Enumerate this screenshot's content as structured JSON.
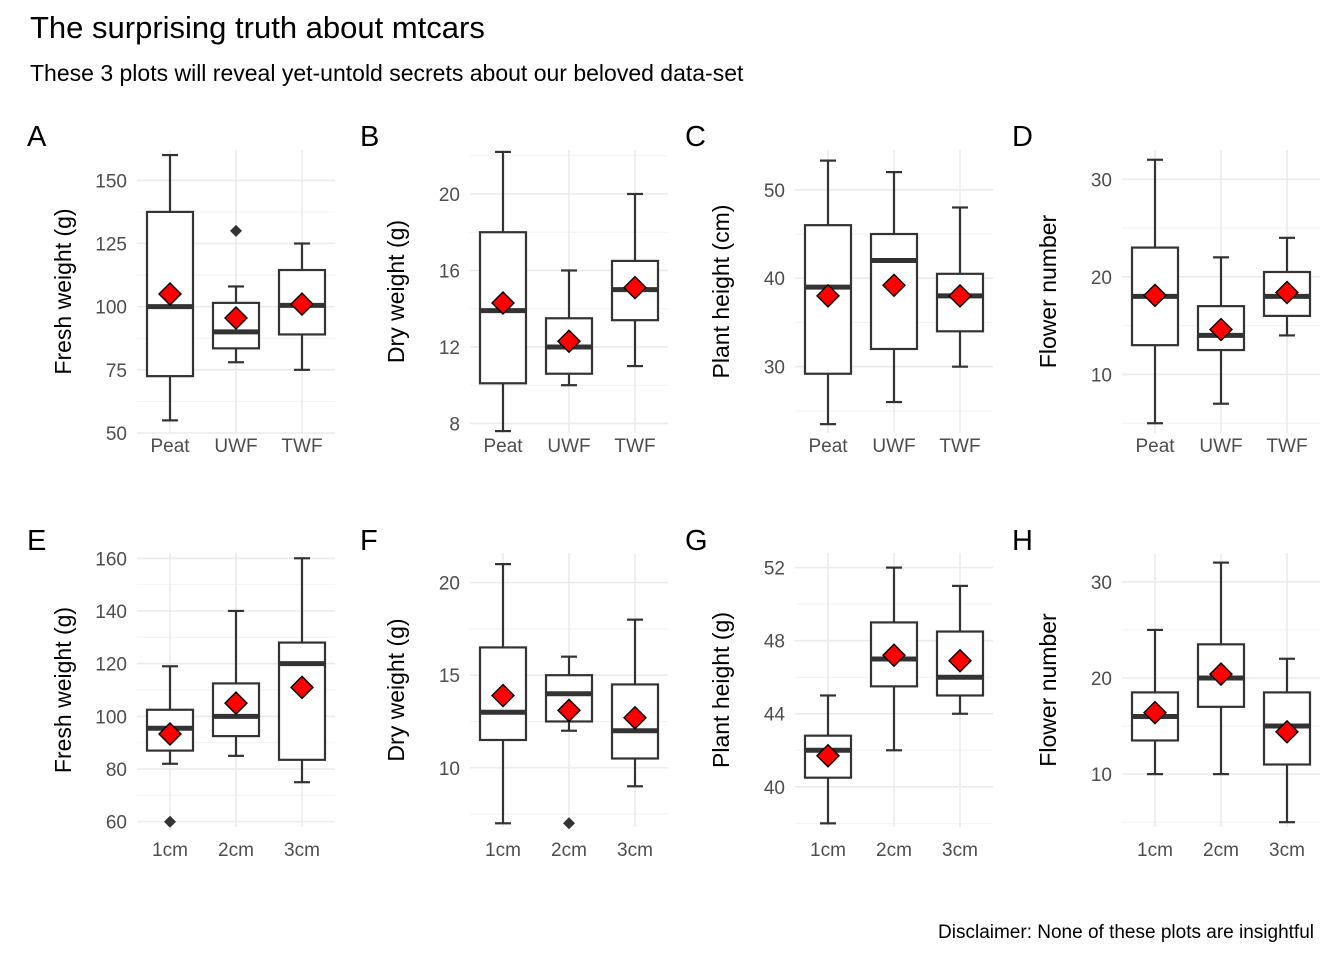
{
  "title": "The surprising truth about mtcars",
  "subtitle": "These 3 plots will reveal yet-untold secrets about our beloved data-set",
  "caption": "Disclaimer: None of these plots are insightful",
  "colors": {
    "mean_marker": "#ff0000",
    "box_line": "#333333",
    "grid": "#ebebeb"
  },
  "chart_data": [
    {
      "type": "boxplot",
      "tag": "A",
      "ylabel": "Fresh weight (g)",
      "categories": [
        "Peat",
        "UWF",
        "TWF"
      ],
      "ylim": [
        50,
        162
      ],
      "yticks": [
        50,
        75,
        100,
        125,
        150
      ],
      "boxes": [
        {
          "min": 55,
          "q1": 72.5,
          "median": 100,
          "q3": 137.5,
          "max": 160,
          "mean": 105,
          "outliers": []
        },
        {
          "min": 78,
          "q1": 83.5,
          "median": 90,
          "q3": 101.5,
          "max": 108,
          "mean": 95.5,
          "outliers": [
            130
          ]
        },
        {
          "min": 75,
          "q1": 89,
          "median": 100.5,
          "q3": 114.5,
          "max": 125,
          "mean": 101,
          "outliers": []
        }
      ]
    },
    {
      "type": "boxplot",
      "tag": "B",
      "ylabel": "Dry weight (g)",
      "categories": [
        "Peat",
        "UWF",
        "TWF"
      ],
      "ylim": [
        7.5,
        22.3
      ],
      "yticks": [
        8,
        12,
        16,
        20
      ],
      "boxes": [
        {
          "min": 7.6,
          "q1": 10.1,
          "median": 13.9,
          "q3": 18,
          "max": 22.2,
          "mean": 14.3,
          "outliers": []
        },
        {
          "min": 10,
          "q1": 10.6,
          "median": 12,
          "q3": 13.5,
          "max": 16,
          "mean": 12.3,
          "outliers": []
        },
        {
          "min": 11,
          "q1": 13.4,
          "median": 15,
          "q3": 16.5,
          "max": 20,
          "mean": 15.1,
          "outliers": []
        }
      ]
    },
    {
      "type": "boxplot",
      "tag": "C",
      "ylabel": "Plant height (cm)",
      "categories": [
        "Peat",
        "UWF",
        "TWF"
      ],
      "ylim": [
        22.5,
        54.5
      ],
      "yticks": [
        30,
        40,
        50
      ],
      "boxes": [
        {
          "min": 23.5,
          "q1": 29.2,
          "median": 39,
          "q3": 46,
          "max": 53.3,
          "mean": 38,
          "outliers": []
        },
        {
          "min": 26,
          "q1": 32,
          "median": 42,
          "q3": 45,
          "max": 52,
          "mean": 39.2,
          "outliers": []
        },
        {
          "min": 30,
          "q1": 34,
          "median": 38,
          "q3": 40.5,
          "max": 48,
          "mean": 38,
          "outliers": []
        }
      ]
    },
    {
      "type": "boxplot",
      "tag": "D",
      "ylabel": "Flower number",
      "categories": [
        "Peat",
        "UWF",
        "TWF"
      ],
      "ylim": [
        4,
        33
      ],
      "yticks": [
        10,
        20,
        30
      ],
      "boxes": [
        {
          "min": 5,
          "q1": 13,
          "median": 18,
          "q3": 23,
          "max": 32,
          "mean": 18.1,
          "outliers": []
        },
        {
          "min": 7,
          "q1": 12.5,
          "median": 14,
          "q3": 17,
          "max": 22,
          "mean": 14.6,
          "outliers": []
        },
        {
          "min": 14,
          "q1": 16,
          "median": 18,
          "q3": 20.5,
          "max": 24,
          "mean": 18.4,
          "outliers": []
        }
      ]
    },
    {
      "type": "boxplot",
      "tag": "E",
      "ylabel": "Fresh weight (g)",
      "categories": [
        "1cm",
        "2cm",
        "3cm"
      ],
      "ylim": [
        58,
        162
      ],
      "yticks": [
        60,
        80,
        100,
        120,
        140,
        160
      ],
      "boxes": [
        {
          "min": 82,
          "q1": 87,
          "median": 95.5,
          "q3": 102.5,
          "max": 119,
          "mean": 93.3,
          "outliers": [
            60
          ]
        },
        {
          "min": 85,
          "q1": 92.5,
          "median": 100,
          "q3": 112.5,
          "max": 140,
          "mean": 105,
          "outliers": []
        },
        {
          "min": 75,
          "q1": 83.5,
          "median": 120,
          "q3": 128,
          "max": 160,
          "mean": 111,
          "outliers": []
        }
      ]
    },
    {
      "type": "boxplot",
      "tag": "F",
      "ylabel": "Dry weight (g)",
      "categories": [
        "1cm",
        "2cm",
        "3cm"
      ],
      "ylim": [
        6.8,
        21.6
      ],
      "yticks": [
        10,
        15,
        20
      ],
      "boxes": [
        {
          "min": 7,
          "q1": 11.5,
          "median": 13,
          "q3": 16.5,
          "max": 21,
          "mean": 13.9,
          "outliers": []
        },
        {
          "min": 12,
          "q1": 12.5,
          "median": 14,
          "q3": 15,
          "max": 16,
          "mean": 13.1,
          "outliers": [
            7
          ]
        },
        {
          "min": 9,
          "q1": 10.5,
          "median": 12,
          "q3": 14.5,
          "max": 18,
          "mean": 12.7,
          "outliers": []
        }
      ]
    },
    {
      "type": "boxplot",
      "tag": "G",
      "ylabel": "Plant height (g)",
      "categories": [
        "1cm",
        "2cm",
        "3cm"
      ],
      "ylim": [
        37.8,
        52.8
      ],
      "yticks": [
        40,
        44,
        48,
        52
      ],
      "boxes": [
        {
          "min": 38,
          "q1": 40.5,
          "median": 42,
          "q3": 42.8,
          "max": 45,
          "mean": 41.7,
          "outliers": []
        },
        {
          "min": 42,
          "q1": 45.5,
          "median": 47,
          "q3": 49,
          "max": 52,
          "mean": 47.2,
          "outliers": []
        },
        {
          "min": 44,
          "q1": 45,
          "median": 46,
          "q3": 48.5,
          "max": 51,
          "mean": 46.9,
          "outliers": []
        }
      ]
    },
    {
      "type": "boxplot",
      "tag": "H",
      "ylabel": "Flower number",
      "categories": [
        "1cm",
        "2cm",
        "3cm"
      ],
      "ylim": [
        4.5,
        33
      ],
      "yticks": [
        10,
        20,
        30
      ],
      "boxes": [
        {
          "min": 10,
          "q1": 13.5,
          "median": 16,
          "q3": 18.5,
          "max": 25,
          "mean": 16.4,
          "outliers": []
        },
        {
          "min": 10,
          "q1": 17,
          "median": 20,
          "q3": 23.5,
          "max": 32,
          "mean": 20.4,
          "outliers": []
        },
        {
          "min": 5,
          "q1": 11,
          "median": 15,
          "q3": 18.5,
          "max": 22,
          "mean": 14.4,
          "outliers": []
        }
      ]
    }
  ]
}
